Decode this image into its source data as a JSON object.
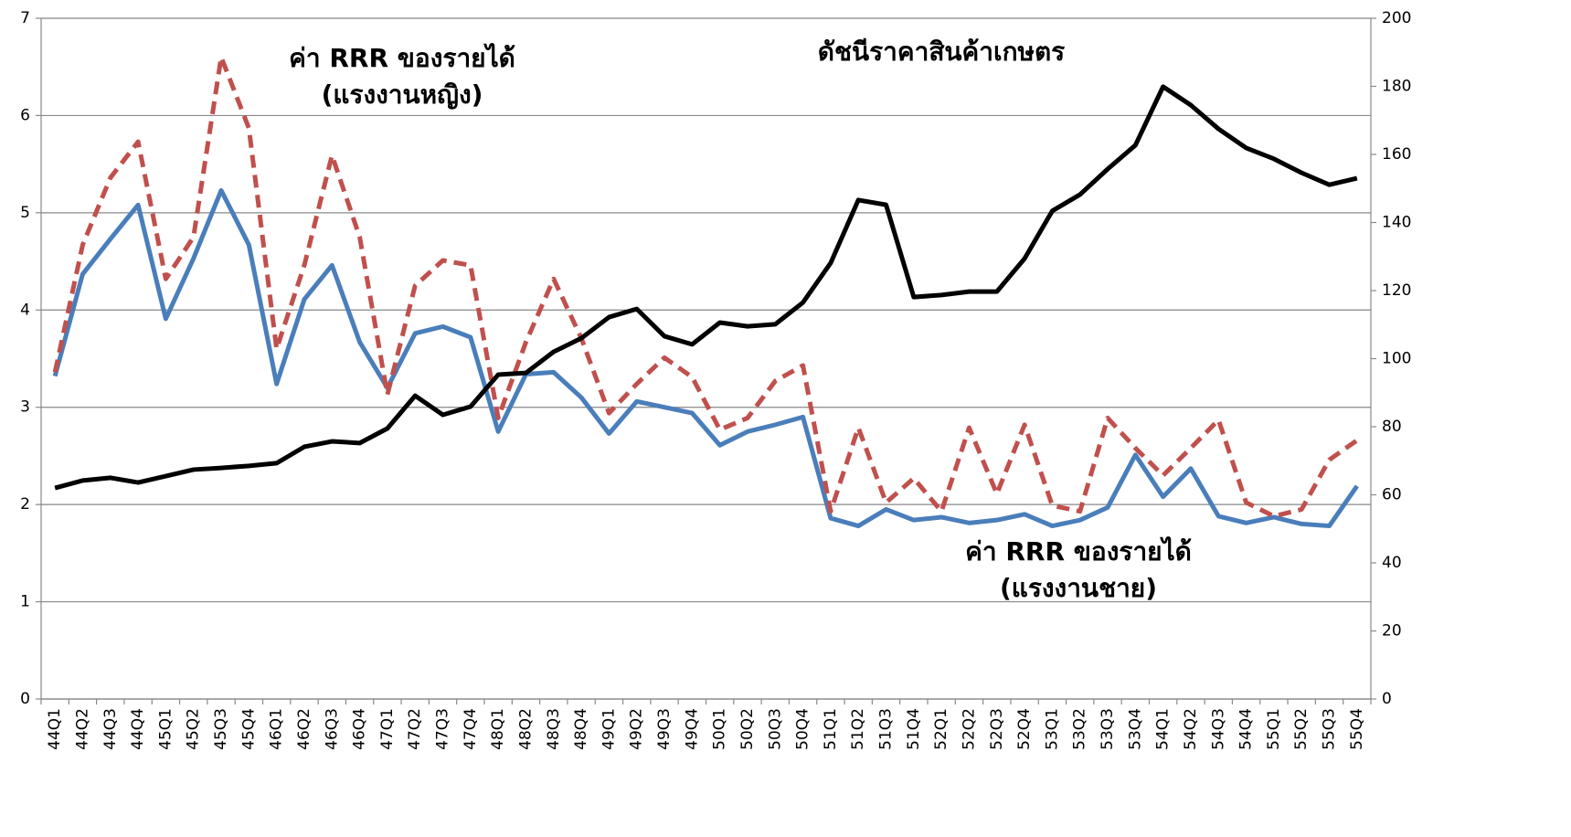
{
  "chart_data": {
    "type": "line",
    "categories": [
      "44Q1",
      "44Q2",
      "44Q3",
      "44Q4",
      "45Q1",
      "45Q2",
      "45Q3",
      "45Q4",
      "46Q1",
      "46Q2",
      "46Q3",
      "46Q4",
      "47Q1",
      "47Q2",
      "47Q3",
      "47Q4",
      "48Q1",
      "48Q2",
      "48Q3",
      "48Q4",
      "49Q1",
      "49Q2",
      "49Q3",
      "49Q4",
      "50Q1",
      "50Q2",
      "50Q3",
      "50Q4",
      "51Q1",
      "51Q2",
      "51Q3",
      "51Q4",
      "52Q1",
      "52Q2",
      "52Q3",
      "52Q4",
      "53Q1",
      "53Q2",
      "53Q3",
      "53Q4",
      "54Q1",
      "54Q2",
      "54Q3",
      "54Q4",
      "55Q1",
      "55Q2",
      "55Q3",
      "55Q4"
    ],
    "series": [
      {
        "color": "#4a7ebb",
        "dashed": false,
        "axis": "y",
        "values": [
          3.32,
          4.37,
          4.73,
          5.08,
          3.91,
          4.53,
          5.23,
          4.67,
          3.24,
          4.11,
          4.46,
          3.67,
          3.2,
          3.76,
          3.83,
          3.72,
          2.75,
          3.34,
          3.36,
          3.1,
          2.73,
          3.06,
          3.0,
          2.94,
          2.61,
          2.75,
          2.82,
          2.9,
          1.86,
          1.78,
          1.95,
          1.84,
          1.87,
          1.81,
          1.84,
          1.9,
          1.78,
          1.84,
          1.97,
          2.51,
          2.08,
          2.37,
          1.88,
          1.81,
          1.87,
          1.8,
          1.78,
          2.19
        ]
      },
      {
        "color": "#c0504d",
        "dashed": true,
        "axis": "y",
        "values": [
          3.36,
          4.67,
          5.36,
          5.73,
          4.32,
          4.75,
          6.6,
          5.87,
          3.6,
          4.46,
          5.59,
          4.75,
          3.13,
          4.25,
          4.51,
          4.46,
          2.89,
          3.67,
          4.32,
          3.71,
          2.94,
          3.24,
          3.51,
          3.31,
          2.77,
          2.89,
          3.27,
          3.43,
          1.93,
          2.79,
          2.02,
          2.27,
          1.93,
          2.79,
          2.11,
          2.82,
          1.99,
          1.93,
          2.89,
          2.58,
          2.3,
          2.58,
          2.87,
          2.02,
          1.88,
          1.95,
          2.46,
          2.66
        ]
      },
      {
        "color": "#000000",
        "dashed": false,
        "axis": "y2",
        "values": [
          62.0,
          64.2,
          65.0,
          63.6,
          65.5,
          67.4,
          67.9,
          68.5,
          69.3,
          74.1,
          75.7,
          75.2,
          79.5,
          89.1,
          83.5,
          85.9,
          95.3,
          95.8,
          102.0,
          106.0,
          112.2,
          114.6,
          106.6,
          104.2,
          110.6,
          109.5,
          110.1,
          116.5,
          128.1,
          146.6,
          145.2,
          118.1,
          118.7,
          119.7,
          119.7,
          129.4,
          143.4,
          148.2,
          155.7,
          162.7,
          179.9,
          174.5,
          167.5,
          161.9,
          158.7,
          154.6,
          151.1,
          153.0
        ]
      }
    ],
    "annotations": [
      {
        "lines": [
          "ค่า RRR ของรายได้",
          "(แรงงานหญิง)"
        ]
      },
      {
        "lines": [
          "ดัชนีราคาสินค้าเกษตร"
        ]
      },
      {
        "lines": [
          "ค่า RRR ของรายได้",
          "(แรงงานชาย)"
        ]
      }
    ],
    "ylim": [
      0,
      7
    ],
    "yticks": [
      0,
      1,
      2,
      3,
      4,
      5,
      6,
      7
    ],
    "y2lim": [
      0,
      200
    ],
    "y2ticks": [
      0,
      20,
      40,
      60,
      80,
      100,
      120,
      140,
      160,
      180,
      200
    ],
    "grid": true
  }
}
